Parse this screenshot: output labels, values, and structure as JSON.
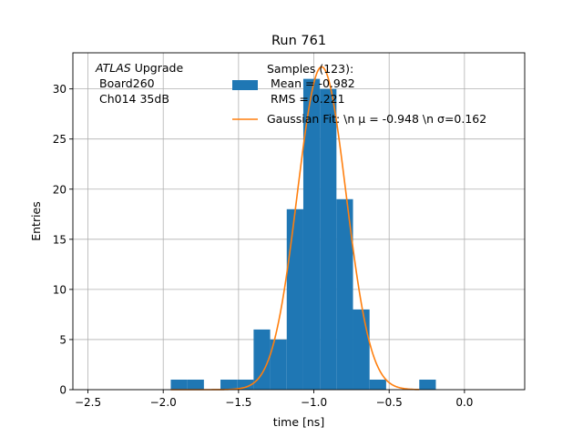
{
  "chart_data": {
    "type": "bar",
    "title": "Run 761",
    "xlabel": "time [ns]",
    "ylabel": "Entries",
    "xlim": [
      -2.6,
      0.4
    ],
    "ylim": [
      0,
      33.6
    ],
    "xticks": [
      -2.5,
      -2.0,
      -1.5,
      -1.0,
      -0.5,
      0.0
    ],
    "xtick_labels": [
      "−2.5",
      "−2.0",
      "−1.5",
      "−1.0",
      "−0.5",
      "0.0"
    ],
    "yticks": [
      0,
      5,
      10,
      15,
      20,
      25,
      30
    ],
    "ytick_labels": [
      "0",
      "5",
      "10",
      "15",
      "20",
      "25",
      "30"
    ],
    "grid": true,
    "annotation": {
      "line1_italic": "ATLAS",
      "line1_rest": " Upgrade",
      "line2": "Board260",
      "line3": "Ch014 35dB"
    },
    "legend": {
      "placement": "top-center",
      "hist_lines": [
        "Samples (123):",
        " Mean = -0.982",
        " RMS = 0.221"
      ],
      "fit_text": "Gaussian Fit: \\n μ = -0.948 \\n σ=0.162"
    },
    "histogram": {
      "name": "Samples (123)",
      "color": "#1f77b4",
      "bin_edges": [
        -1.95,
        -1.84,
        -1.73,
        -1.62,
        -1.51,
        -1.4,
        -1.29,
        -1.18,
        -1.07,
        -0.96,
        -0.85,
        -0.74,
        -0.63,
        -0.52,
        -0.41,
        -0.3,
        -0.19
      ],
      "counts": [
        1,
        1,
        0,
        1,
        1,
        6,
        5,
        18,
        31,
        30,
        19,
        8,
        1,
        0,
        0,
        1
      ]
    },
    "fit": {
      "name": "Gaussian Fit",
      "color": "#ff7f0e",
      "mu": -0.948,
      "sigma": 0.162,
      "amplitude": 32.2,
      "x_range": [
        -1.95,
        -0.3
      ]
    }
  }
}
